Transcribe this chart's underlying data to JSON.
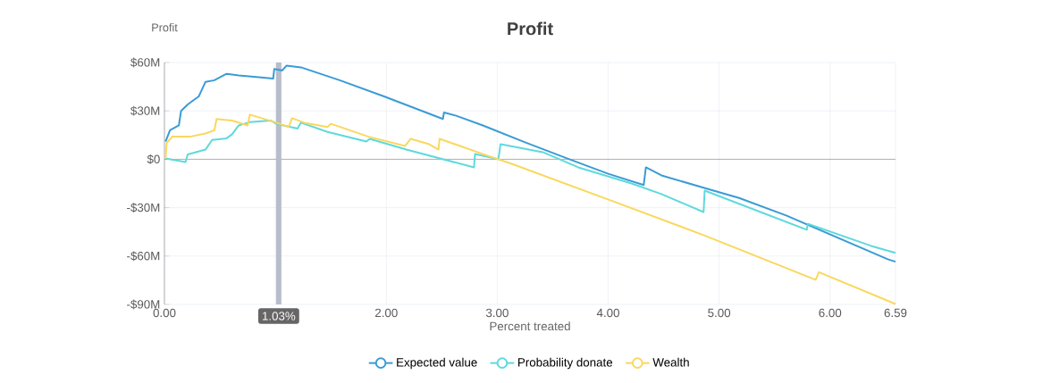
{
  "chart_data": {
    "type": "line",
    "title": "Profit",
    "ylabel": "Profit",
    "xlabel": "Percent treated",
    "xlim": [
      0,
      6.59
    ],
    "ylim": [
      -90,
      60
    ],
    "xticks": [
      {
        "value": 0,
        "label": "0.00"
      },
      {
        "value": 1,
        "label": null
      },
      {
        "value": 2,
        "label": "2.00"
      },
      {
        "value": 3,
        "label": "3.00"
      },
      {
        "value": 4,
        "label": "4.00"
      },
      {
        "value": 5,
        "label": "5.00"
      },
      {
        "value": 6,
        "label": "6.00"
      },
      6.59
    ],
    "yticks": [
      {
        "value": -90,
        "label": "-$90M"
      },
      {
        "value": -60,
        "label": "-$60M"
      },
      {
        "value": -30,
        "label": "-$30M"
      },
      {
        "value": 0,
        "label": "$0"
      },
      {
        "value": 30,
        "label": "$30M"
      },
      {
        "value": 60,
        "label": "$60M"
      }
    ],
    "grid": true,
    "legend": "bottom",
    "marker": "none",
    "line_style": "solid",
    "ref_lines": [
      {
        "axis": "x",
        "value": 1.03,
        "label": "1.03%",
        "color": "#b8bdcc"
      }
    ],
    "series": [
      {
        "name": "Expected value",
        "color": "#3a9bd6",
        "x": [
          0.01,
          0.05,
          0.13,
          0.15,
          0.21,
          0.27,
          0.31,
          0.37,
          0.45,
          0.56,
          0.67,
          0.83,
          0.98,
          0.99,
          1.06,
          1.1,
          1.23,
          1.58,
          1.98,
          2.51,
          2.52,
          2.63,
          2.87,
          3.25,
          3.65,
          4.0,
          4.32,
          4.34,
          4.48,
          4.88,
          5.18,
          5.61,
          6.52,
          6.59
        ],
        "values": [
          11,
          18,
          21,
          30,
          34,
          37,
          39,
          48,
          49,
          53,
          52,
          51,
          50,
          56,
          55,
          58,
          57,
          49,
          39,
          25,
          29,
          27,
          21,
          10.5,
          0,
          -9,
          -16,
          -5,
          -10,
          -18,
          -24,
          -35,
          -62,
          -63.5
        ]
      },
      {
        "name": "Probability donate",
        "color": "#5fd9dc",
        "x": [
          0.01,
          0.19,
          0.21,
          0.37,
          0.43,
          0.56,
          0.61,
          0.67,
          0.77,
          0.96,
          1.01,
          1.2,
          1.23,
          1.47,
          1.82,
          1.85,
          2.18,
          2.79,
          2.8,
          3.01,
          3.03,
          3.41,
          3.73,
          4.21,
          4.48,
          4.86,
          4.87,
          5.79,
          5.8,
          6.37,
          6.59
        ],
        "values": [
          0.5,
          -1.7,
          3,
          6,
          12,
          13,
          15.5,
          21,
          23,
          24,
          22,
          19,
          22.7,
          17,
          11,
          12.7,
          6,
          -5,
          3.3,
          0,
          9.4,
          4.4,
          -5,
          -15,
          -21.6,
          -32.7,
          -19.4,
          -43.7,
          -40,
          -53.7,
          -58
        ]
      },
      {
        "name": "Wealth",
        "color": "#f9d85e",
        "x": [
          0.01,
          0.02,
          0.07,
          0.23,
          0.37,
          0.45,
          0.47,
          0.61,
          0.75,
          0.77,
          1.01,
          1.12,
          1.15,
          1.26,
          1.47,
          1.5,
          1.84,
          2.17,
          2.22,
          2.38,
          2.47,
          2.48,
          2.89,
          3.13,
          4.08,
          4.86,
          5.87,
          5.9,
          6.59
        ],
        "values": [
          0.5,
          10,
          14,
          14,
          16,
          18,
          25,
          24,
          21,
          27.7,
          22.7,
          20,
          25.5,
          22.7,
          20,
          22,
          14,
          8.3,
          12.7,
          9.5,
          6,
          12.7,
          2.8,
          -2.8,
          -27,
          -47,
          -74.7,
          -70,
          -89.7
        ]
      }
    ]
  }
}
